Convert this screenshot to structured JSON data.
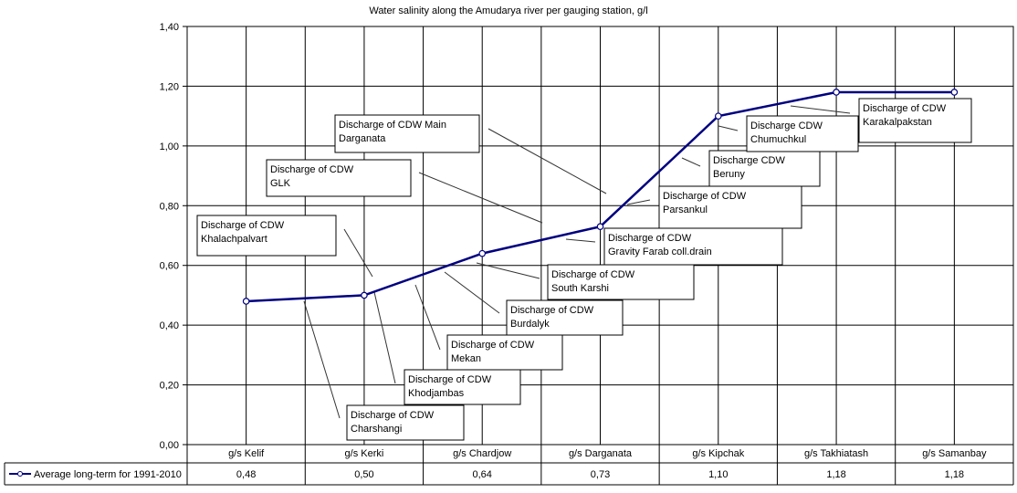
{
  "chart_data": {
    "type": "line",
    "title": "Water salinity along the Amudarya river per gauging station, g/l",
    "xlabel": "",
    "ylabel": "",
    "ylim": [
      0,
      1.4
    ],
    "yticks": [
      "0,00",
      "0,20",
      "0,40",
      "0,60",
      "0,80",
      "1,00",
      "1,20",
      "1,40"
    ],
    "grid": true,
    "categories": [
      "g/s Kelif",
      "g/s Kerki",
      "g/s Chardjow",
      "g/s Darganata",
      "g/s Kipchak",
      "g/s Takhiatash",
      "g/s Samanbay"
    ],
    "series": [
      {
        "name": "Average long-term for 1991-2010",
        "values": [
          0.48,
          0.5,
          0.64,
          0.73,
          1.1,
          1.18,
          1.18
        ],
        "value_labels": [
          "0,48",
          "0,50",
          "0,64",
          "0,73",
          "1,10",
          "1,18",
          "1,18"
        ],
        "color": "#000080"
      }
    ],
    "legend": "data-table-left",
    "annotations": [
      {
        "line1": "Discharge of CDW Main",
        "line2": "Darganata"
      },
      {
        "line1": "Discharge of CDW",
        "line2": "GLK"
      },
      {
        "line1": "Discharge of CDW",
        "line2": "Khalachpalvart"
      },
      {
        "line1": "Discharge of CDW",
        "line2": "Charshangi"
      },
      {
        "line1": "Discharge of CDW",
        "line2": "Khodjambas"
      },
      {
        "line1": "Discharge of CDW",
        "line2": "Mekan"
      },
      {
        "line1": "Discharge of CDW",
        "line2": "Burdalyk"
      },
      {
        "line1": "Discharge of CDW",
        "line2": "South Karshi"
      },
      {
        "line1": "Discharge of CDW",
        "line2": "Gravity Farab coll.drain"
      },
      {
        "line1": "Discharge of CDW",
        "line2": "Parsankul"
      },
      {
        "line1": "Discharge CDW",
        "line2": "Beruny"
      },
      {
        "line1": "Discharge CDW",
        "line2": "Chumuchkul"
      },
      {
        "line1": "Discharge of CDW",
        "line2": "Karakalpakstan"
      }
    ]
  }
}
